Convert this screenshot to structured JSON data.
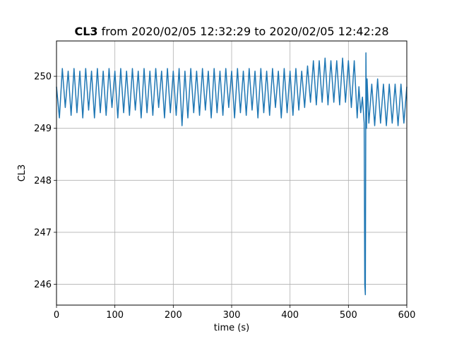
{
  "chart_data": {
    "type": "line",
    "title_bold": "CL3",
    "title_rest": " from 2020/02/05 12:32:29 to 2020/02/05 12:42:28",
    "xlabel": "time (s)",
    "ylabel": "CL3",
    "xlim": [
      0,
      600
    ],
    "ylim": [
      245.6,
      250.68
    ],
    "xticks": [
      0,
      100,
      200,
      300,
      400,
      500,
      600
    ],
    "yticks": [
      246,
      247,
      248,
      249,
      250
    ],
    "grid": true,
    "series": [
      {
        "color": "#1f77b4",
        "x": [
          0,
          5,
          10,
          15,
          20,
          25,
          30,
          35,
          40,
          45,
          50,
          55,
          60,
          65,
          70,
          75,
          80,
          85,
          90,
          95,
          100,
          105,
          110,
          115,
          120,
          125,
          130,
          135,
          140,
          145,
          150,
          155,
          160,
          165,
          170,
          175,
          180,
          185,
          190,
          195,
          200,
          205,
          210,
          215,
          220,
          225,
          230,
          235,
          240,
          245,
          250,
          255,
          260,
          265,
          270,
          275,
          280,
          285,
          290,
          295,
          300,
          305,
          310,
          315,
          320,
          325,
          330,
          335,
          340,
          345,
          350,
          355,
          360,
          365,
          370,
          375,
          380,
          385,
          390,
          395,
          400,
          405,
          410,
          415,
          420,
          425,
          430,
          435,
          440,
          445,
          450,
          455,
          460,
          465,
          470,
          475,
          480,
          485,
          490,
          495,
          500,
          505,
          510,
          515,
          518,
          521,
          524,
          527,
          528,
          529,
          530,
          531,
          532,
          535,
          540,
          545,
          550,
          555,
          560,
          565,
          570,
          575,
          580,
          585,
          590,
          595,
          600
        ],
        "values": [
          249.8,
          249.2,
          250.15,
          249.4,
          250.1,
          249.25,
          250.15,
          249.3,
          250.1,
          249.2,
          250.15,
          249.35,
          250.1,
          249.2,
          250.15,
          249.3,
          250.1,
          249.25,
          250.15,
          249.4,
          250.1,
          249.2,
          250.15,
          249.3,
          250.1,
          249.25,
          250.15,
          249.35,
          250.1,
          249.2,
          250.15,
          249.3,
          250.1,
          249.25,
          250.15,
          249.4,
          250.1,
          249.2,
          250.15,
          249.3,
          250.1,
          249.25,
          250.15,
          249.05,
          250.1,
          249.2,
          250.15,
          249.3,
          250.1,
          249.25,
          250.15,
          249.35,
          250.1,
          249.2,
          250.15,
          249.3,
          250.1,
          249.25,
          250.15,
          249.4,
          250.1,
          249.2,
          250.15,
          249.3,
          250.1,
          249.25,
          250.15,
          249.35,
          250.1,
          249.2,
          250.15,
          249.3,
          250.1,
          249.25,
          250.15,
          249.4,
          250.1,
          249.2,
          250.15,
          249.3,
          250.1,
          249.25,
          250.15,
          249.35,
          250.1,
          249.4,
          250.2,
          249.5,
          250.3,
          249.45,
          250.3,
          249.5,
          250.35,
          249.45,
          250.3,
          249.5,
          250.3,
          249.45,
          250.35,
          249.5,
          250.3,
          249.4,
          250.3,
          249.2,
          249.8,
          249.3,
          249.6,
          249.1,
          246.0,
          245.8,
          250.45,
          249.0,
          249.95,
          249.1,
          249.85,
          249.05,
          249.95,
          249.1,
          249.85,
          249.05,
          249.85,
          249.1,
          249.85,
          249.05,
          249.85,
          249.1,
          249.8
        ]
      }
    ]
  }
}
